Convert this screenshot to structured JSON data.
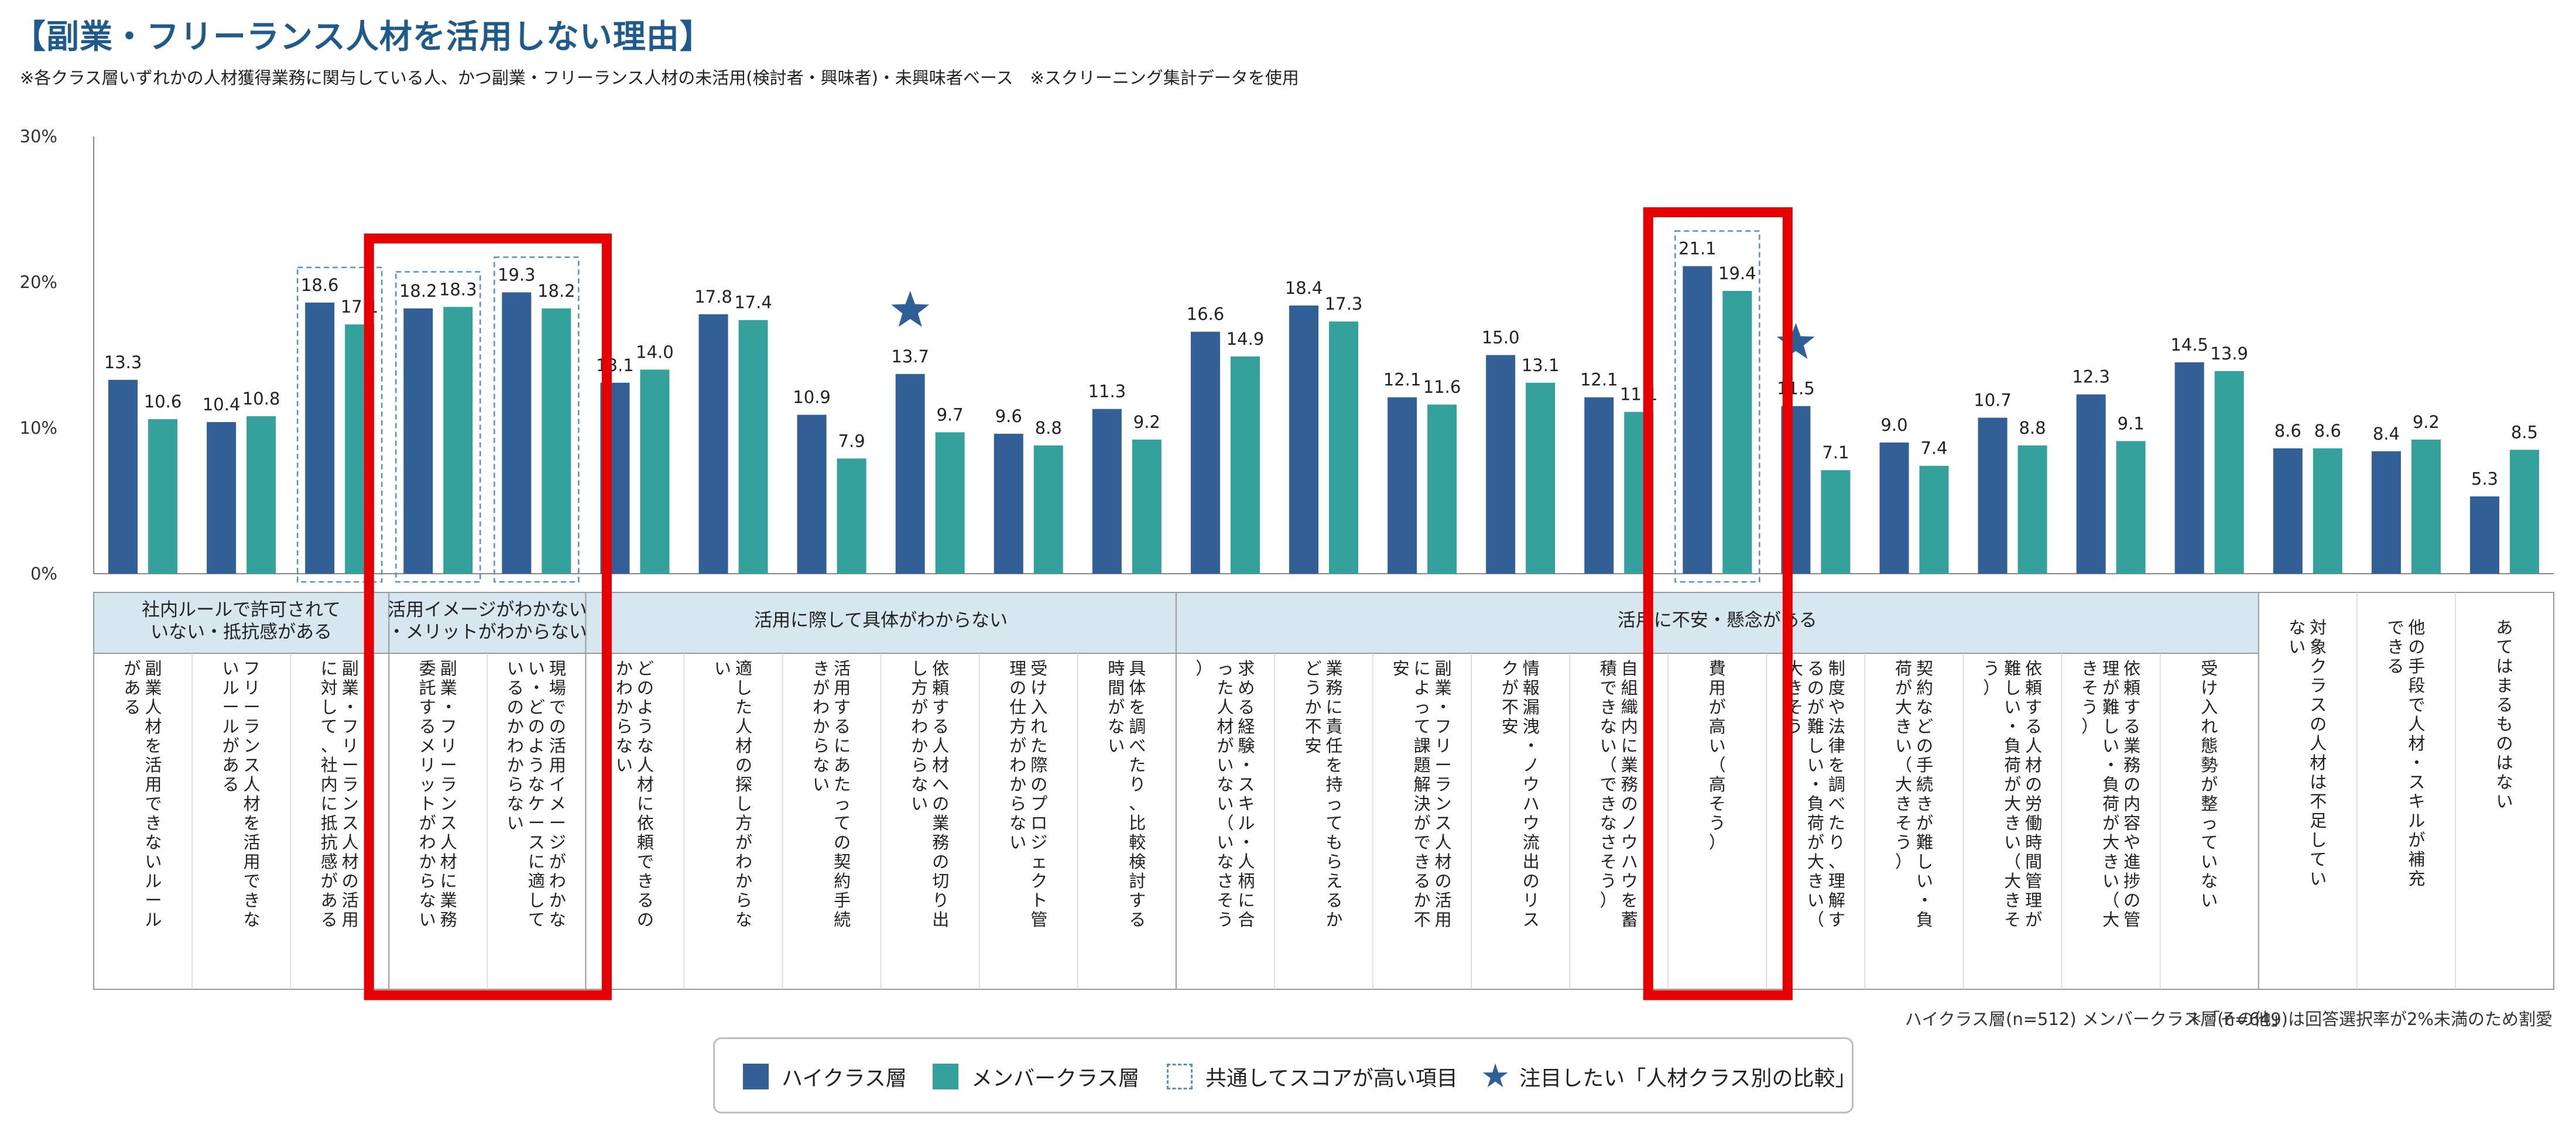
{
  "title": "【副業・フリーランス人材を活用しない理由】",
  "subtitle": "※各クラス層いずれかの人材獲得業務に関与している人、かつ副業・フリーランス人材の未活用(検討者・興味者)・未興味者ベース　※スクリーニング集計データを使用",
  "colors": {
    "high_class": "#325f96",
    "member_class": "#35a19c",
    "highlight_box": "#e60000",
    "common_box": "#5b8fc4",
    "star": "#2e5f96",
    "group_header_bg": "#d6e7ef"
  },
  "footer": {
    "sample_size": "ハイクラス層(n=512) メンバークラス層(n=649)",
    "note": "＊「その他」は回答選択率が2%未満のため割愛"
  },
  "legend": {
    "high_class": "ハイクラス層",
    "member_class": "メンバークラス層",
    "common_high": "共通してスコアが高い項目",
    "star": "注目したい「人材クラス別の比較」"
  },
  "chart_data": {
    "type": "bar",
    "ylim": [
      0,
      30
    ],
    "yticks": [
      "0%",
      "10%",
      "20%",
      "30%"
    ],
    "grid": false,
    "legend_position": "bottom",
    "groups": [
      {
        "label": "社内ルールで許可されていない・抵抗感がある",
        "span": [
          0,
          2
        ]
      },
      {
        "label": "活用イメージがわかない・メリットがわからない",
        "span": [
          3,
          4
        ]
      },
      {
        "label": "活用に際して具体がわからない",
        "span": [
          5,
          10
        ]
      },
      {
        "label": "活用に不安・懸念がある",
        "span": [
          11,
          21
        ]
      },
      {
        "label": "",
        "span": [
          22,
          24
        ]
      }
    ],
    "categories": [
      "副業人材を活用できないルールがある",
      "フリーランス人材を活用できないルールがある",
      "副業・フリーランス人材の活用に対して、社内に抵抗感がある",
      "副業・フリーランス人材に業務委託するメリットがわからない",
      "現場での活用イメージがわかない・どのようなケースに適しているのかわからない",
      "どのような人材に依頼できるのかわからない",
      "適した人材の探し方がわからない",
      "活用するにあたっての契約手続きがわからない",
      "依頼する人材への業務の切り出し方がわからない",
      "受け入れた際のプロジェクト管理の仕方がわからない",
      "具体を調べたり、比較検討する時間がない",
      "求める経験・スキル・人柄に合った人材がいない（いなさそう）",
      "業務に責任を持ってもらえるかどうか不安",
      "副業・フリーランス人材の活用によって課題解決ができるか不安",
      "情報漏洩・ノウハウ流出のリスクが不安",
      "自組織内に業務のノウハウを蓄積できない（できなさそう）",
      "費用が高い（高そう）",
      "制度や法律を調べたり、理解するのが難しい・負荷が大きい（大きそう）",
      "契約などの手続きが難しい・負荷が大きい（大きそう）",
      "依頼する人材の労働時間管理が難しい・負荷が大きい（大きそう）",
      "依頼する業務の内容や進捗の管理が難しい・負荷が大きい（大きそう）",
      "受け入れ態勢が整っていない",
      "対象クラスの人材は不足していない",
      "他の手段で人材・スキルが補充できる",
      "あてはまるものはない"
    ],
    "series": [
      {
        "name": "ハイクラス層",
        "values": [
          13.3,
          10.4,
          18.6,
          18.2,
          19.3,
          13.1,
          17.8,
          10.9,
          13.7,
          9.6,
          11.3,
          16.6,
          18.4,
          12.1,
          15.0,
          12.1,
          21.1,
          11.5,
          9.0,
          10.7,
          12.3,
          14.5,
          8.6,
          8.4,
          5.3
        ]
      },
      {
        "name": "メンバークラス層",
        "values": [
          10.6,
          10.8,
          17.1,
          18.3,
          18.2,
          14.0,
          17.4,
          7.9,
          9.7,
          8.8,
          9.2,
          14.9,
          17.3,
          11.6,
          13.1,
          11.1,
          19.4,
          7.1,
          7.4,
          8.8,
          9.1,
          13.9,
          8.6,
          9.2,
          8.5
        ]
      }
    ],
    "common_high_indices": [
      2,
      3,
      4,
      16
    ],
    "red_highlight_indices": [
      [
        3,
        4
      ],
      [
        16,
        16
      ]
    ],
    "star_indices": [
      8,
      17
    ]
  }
}
